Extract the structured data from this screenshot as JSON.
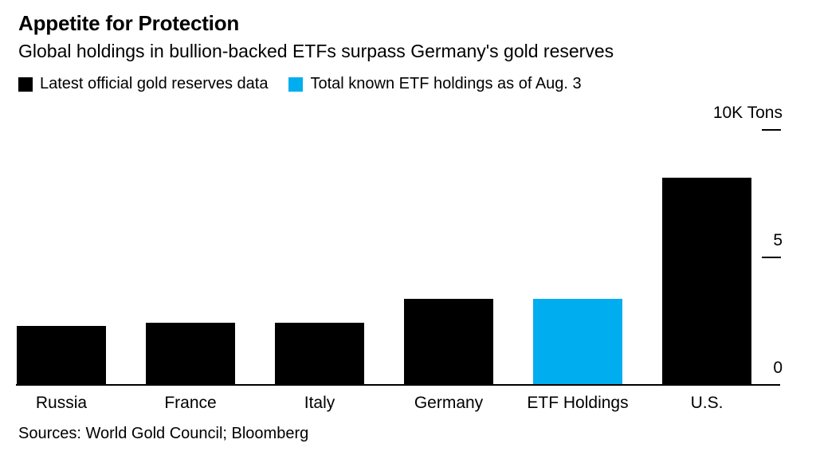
{
  "legend": [
    {
      "label": "Latest official gold reserves data",
      "color": "#000000"
    },
    {
      "label": "Total known ETF holdings as of Aug. 3",
      "color": "#00AEEF"
    }
  ],
  "chart_data": {
    "type": "bar",
    "title": "Appetite for Protection",
    "subtitle": "Global holdings in bullion-backed ETFs surpass Germany's gold reserves",
    "categories": [
      "Russia",
      "France",
      "Italy",
      "Germany",
      "ETF Holdings",
      "U.S."
    ],
    "values": [
      2.3,
      2.44,
      2.45,
      3.36,
      3.37,
      8.13
    ],
    "colors": [
      "#000000",
      "#000000",
      "#000000",
      "#000000",
      "#00AEEF",
      "#000000"
    ],
    "ylabel": "10K Tons",
    "yticks": [
      {
        "value": 0,
        "label": "0"
      },
      {
        "value": 5,
        "label": "5"
      },
      {
        "value": 10,
        "label": "10K Tons"
      }
    ],
    "ylim": [
      0,
      10.5
    ],
    "grid": false,
    "legend_position": "top",
    "axis_side": "right"
  },
  "source": "Sources: World Gold Council; Bloomberg"
}
